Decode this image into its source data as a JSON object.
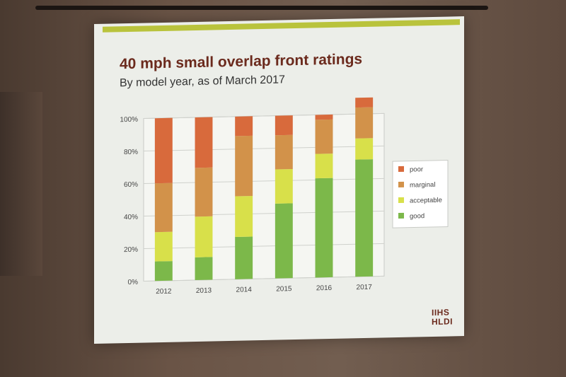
{
  "slide": {
    "title": "40 mph small overlap front ratings",
    "subtitle": "By model year, as of March 2017",
    "logo_line1": "IIHS",
    "logo_line2": "HLDI"
  },
  "colors": {
    "poor": "#d86a3c",
    "marginal": "#d2924a",
    "acceptable": "#d8e04a",
    "good": "#7cb84a"
  },
  "chart_data": {
    "type": "bar",
    "stacked": true,
    "categories": [
      "2012",
      "2013",
      "2014",
      "2015",
      "2016",
      "2017"
    ],
    "ylim": [
      0,
      100
    ],
    "yticks": [
      "0%",
      "20%",
      "40%",
      "60%",
      "80%",
      "100%"
    ],
    "series": [
      {
        "name": "good",
        "values": [
          12,
          14,
          26,
          46,
          61,
          72
        ]
      },
      {
        "name": "acceptable",
        "values": [
          18,
          25,
          25,
          21,
          15,
          13
        ]
      },
      {
        "name": "marginal",
        "values": [
          30,
          30,
          37,
          21,
          21,
          19
        ]
      },
      {
        "name": "poor",
        "values": [
          40,
          31,
          12,
          12,
          3,
          6
        ]
      }
    ],
    "legend_order": [
      "poor",
      "marginal",
      "acceptable",
      "good"
    ],
    "legend_position": "right"
  }
}
